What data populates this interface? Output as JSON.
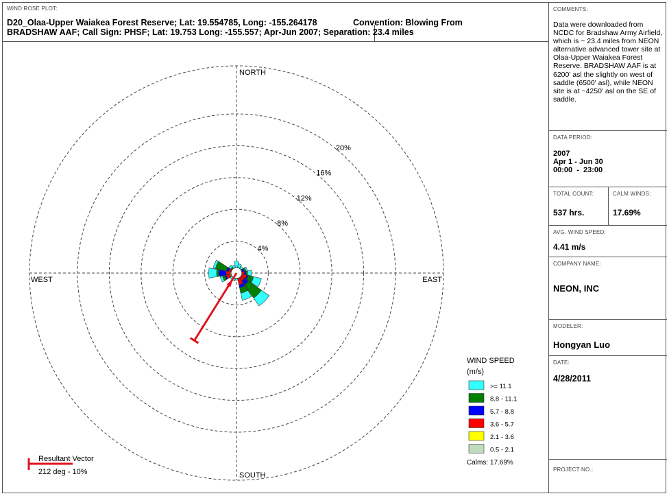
{
  "header": {
    "plot_label": "WIND ROSE PLOT:",
    "title_line1": "D20_Olaa-Upper Waiakea Forest Reserve; Lat: 19.554785, Long: -155.264178",
    "convention": "Convention: Blowing From",
    "title_line2": "BRADSHAW AAF; Call Sign: PHSF; Lat: 19.753 Long: -155.557; Apr-Jun 2007; Separation: 23.4 miles"
  },
  "directions": {
    "north": "NORTH",
    "south": "SOUTH",
    "east": "EAST",
    "west": "WEST"
  },
  "legend": {
    "title": "WIND SPEED",
    "unit": "(m/s)",
    "items": [
      {
        "label": ">= 11.1",
        "color": "#33ffff"
      },
      {
        "label": "8.8 - 11.1",
        "color": "#008000"
      },
      {
        "label": "5.7 - 8.8",
        "color": "#0000ff"
      },
      {
        "label": "3.6 - 5.7",
        "color": "#ff0000"
      },
      {
        "label": "2.1 - 3.6",
        "color": "#ffff00"
      },
      {
        "label": "0.5 - 2.1",
        "color": "#c0dcc0"
      }
    ],
    "calms": "Calms: 17.69%"
  },
  "resultant": {
    "label": "Resultant Vector",
    "value": "212 deg - 10%",
    "direction_deg": 212,
    "magnitude_pct": 10,
    "color": "#e0141e"
  },
  "side": {
    "comments_label": "COMMENTS:",
    "comments": "Data were downloaded from NCDC for Bradshaw Army Airfield, which is ~ 23.4 miles from NEON alternative advanced tower site at Olaa-Upper Waiakea Forest Reserve. BRADSHAW AAF is at 6200' asl the slightly on west of saddle (6500' asl), while NEON site is at ~4250' asl on the SE of saddle.",
    "period_label": "DATA PERIOD:",
    "period_year": "2007",
    "period_range": "Apr 1 - Jun 30",
    "period_hours": "00:00  -  23:00",
    "total_count_label": "TOTAL COUNT:",
    "total_count": "537 hrs.",
    "calm_label": "CALM WINDS:",
    "calm_value": "17.69%",
    "avg_label": "AVG. WIND SPEED:",
    "avg_value": "4.41 m/s",
    "company_label": "COMPANY NAME:",
    "company": "NEON, INC",
    "modeler_label": "MODELER:",
    "modeler": "Hongyan Luo",
    "date_label": "DATE:",
    "date": "4/28/2011",
    "project_label": "PROJECT NO.:"
  },
  "chart_data": {
    "type": "wind-rose",
    "convention": "blowing from",
    "radial_unit": "%",
    "rings": [
      4,
      8,
      12,
      16,
      20
    ],
    "ring_labels": [
      "4%",
      "8%",
      "12%",
      "16%",
      "20%"
    ],
    "bins": [
      ">= 11.1",
      "8.8 - 11.1",
      "5.7 - 8.8",
      "3.6 - 5.7",
      "2.1 - 3.6",
      "0.5 - 2.1"
    ],
    "sectors": [
      {
        "dir": 0,
        "cumulative": [
          1.5,
          0.5,
          0.3,
          0.2,
          0.0,
          0.0
        ]
      },
      {
        "dir": 22.5,
        "cumulative": [
          1.2,
          0.7,
          0.5,
          0.3,
          0.0,
          0.0
        ]
      },
      {
        "dir": 45,
        "cumulative": [
          1.0,
          0.7,
          0.6,
          0.4,
          0.0,
          0.0
        ]
      },
      {
        "dir": 67.5,
        "cumulative": [
          1.4,
          1.2,
          1.0,
          0.7,
          0.0,
          0.0
        ]
      },
      {
        "dir": 90,
        "cumulative": [
          1.9,
          1.4,
          1.2,
          1.0,
          0.0,
          0.0
        ]
      },
      {
        "dir": 112.5,
        "cumulative": [
          3.2,
          2.2,
          1.5,
          1.3,
          0.5,
          0.0
        ]
      },
      {
        "dir": 135,
        "cumulative": [
          5.0,
          3.8,
          1.8,
          1.2,
          0.5,
          0.0
        ]
      },
      {
        "dir": 157.5,
        "cumulative": [
          3.5,
          2.6,
          1.9,
          1.5,
          0.5,
          0.0
        ]
      },
      {
        "dir": 180,
        "cumulative": [
          0.9,
          0.7,
          0.5,
          0.3,
          0.0,
          0.0
        ]
      },
      {
        "dir": 202.5,
        "cumulative": [
          1.0,
          0.6,
          0.4,
          0.3,
          0.0,
          0.0
        ]
      },
      {
        "dir": 225,
        "cumulative": [
          1.0,
          0.6,
          0.4,
          0.3,
          0.0,
          0.0
        ]
      },
      {
        "dir": 247.5,
        "cumulative": [
          2.1,
          1.8,
          1.5,
          1.3,
          0.8,
          0.0
        ]
      },
      {
        "dir": 270,
        "cumulative": [
          3.5,
          2.5,
          2.2,
          1.3,
          0.8,
          0.0
        ]
      },
      {
        "dir": 292.5,
        "cumulative": [
          3.0,
          2.7,
          1.3,
          1.0,
          0.5,
          0.0
        ]
      },
      {
        "dir": 315,
        "cumulative": [
          1.2,
          0.9,
          0.6,
          0.4,
          0.0,
          0.0
        ]
      },
      {
        "dir": 337.5,
        "cumulative": [
          1.0,
          0.6,
          0.4,
          0.2,
          0.0,
          0.0
        ]
      }
    ]
  }
}
